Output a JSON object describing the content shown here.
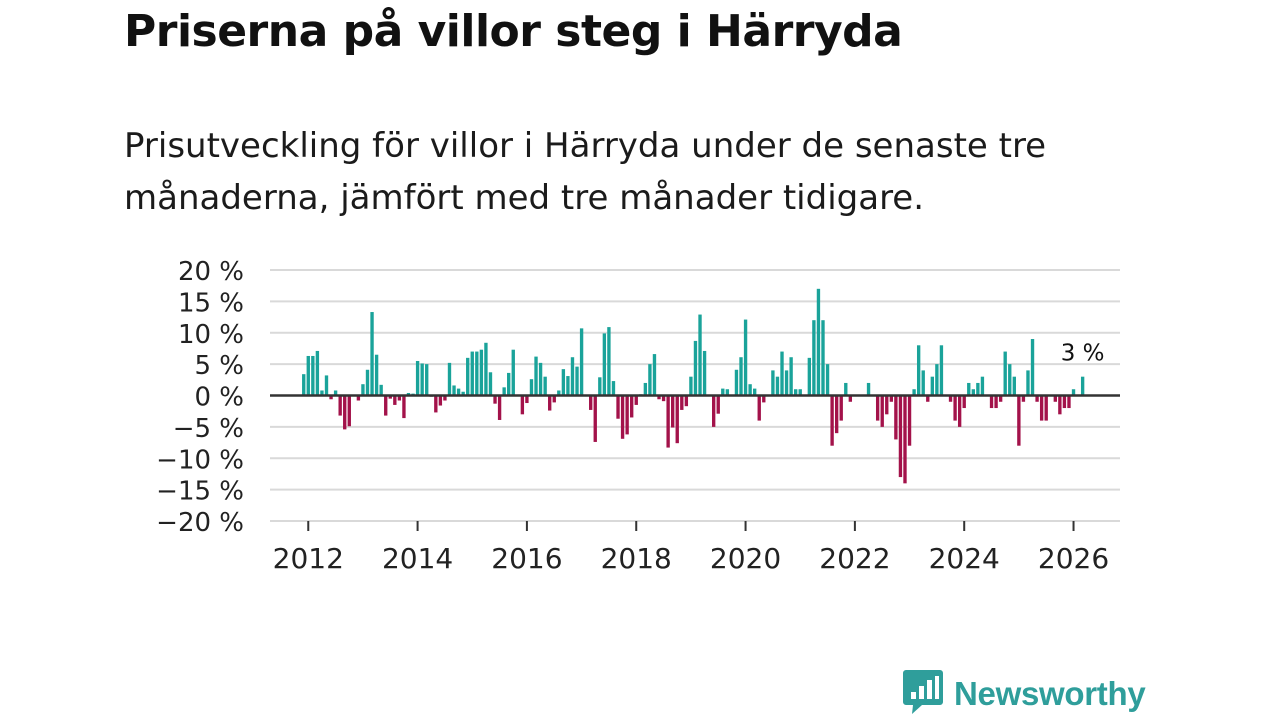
{
  "title": "Priserna på villor steg i Härryda",
  "subtitle": "Prisutveckling för villor i Härryda under de senaste tre månaderna, jämfört med tre månader tidigare.",
  "colors": {
    "positive": "#1aa39a",
    "negative": "#a3124a",
    "grid": "#d9d9d9",
    "zero_line": "#333333",
    "text": "#222222",
    "brand": "#2f9e9b"
  },
  "chart_data": {
    "type": "bar",
    "title": "Priserna på villor steg i Härryda",
    "xlabel": "",
    "ylabel": "",
    "ylim": [
      -20,
      20
    ],
    "yticks": [
      20,
      15,
      10,
      5,
      0,
      -5,
      -10,
      -15,
      -20
    ],
    "ytick_labels": [
      "20 %",
      "15 %",
      "10 %",
      "5 %",
      "0 %",
      "−5 %",
      "−10 %",
      "−15 %",
      "−20 %"
    ],
    "xticks": [
      2012,
      2014,
      2016,
      2018,
      2020,
      2022,
      2024,
      2026
    ],
    "xtick_labels": [
      "2012",
      "2014",
      "2016",
      "2018",
      "2020",
      "2022",
      "2024",
      "2026"
    ],
    "x_start": 2011.917,
    "x_step": 0.08333,
    "last_label": "3 %",
    "values": [
      3.4,
      6.3,
      6.3,
      7.1,
      0.8,
      3.2,
      -0.6,
      0.8,
      -3.2,
      -5.4,
      -4.9,
      0,
      -0.8,
      1.8,
      4.1,
      13.3,
      6.5,
      1.7,
      -3.2,
      -0.5,
      -1.5,
      -0.8,
      -3.6,
      0.4,
      0.3,
      5.5,
      5.1,
      5,
      -0.2,
      -2.7,
      -1.6,
      -0.8,
      5.2,
      1.6,
      1.1,
      0.6,
      6,
      7,
      7,
      7.3,
      8.4,
      3.7,
      -1.3,
      -3.9,
      1.3,
      3.6,
      7.3,
      0,
      -3,
      -1.2,
      2.6,
      6.2,
      5.2,
      3,
      -2.4,
      -1.1,
      0.8,
      4.2,
      3.1,
      6.1,
      4.6,
      10.7,
      0,
      -2.3,
      -7.4,
      2.9,
      9.9,
      10.9,
      2.3,
      -3.7,
      -6.9,
      -6.2,
      -3.5,
      -1.5,
      0.2,
      2,
      5,
      6.6,
      -0.6,
      -0.9,
      -8.3,
      -5.1,
      -7.6,
      -2.3,
      -1.7,
      3,
      8.7,
      12.9,
      7.1,
      0,
      -5,
      -2.9,
      1.1,
      1,
      0,
      4.1,
      6.1,
      12.1,
      1.8,
      1.1,
      -4,
      -1.1,
      0,
      4,
      3,
      7,
      4,
      6.1,
      1,
      1,
      0,
      6,
      12,
      17,
      12,
      5,
      -8,
      -6,
      -4,
      2,
      -1,
      0,
      0,
      0,
      2,
      0,
      -4,
      -5,
      -3,
      -1,
      -7,
      -13,
      -14,
      -8,
      1,
      8,
      4,
      -1,
      3,
      5,
      8,
      0,
      -1,
      -4,
      -5,
      -2,
      2,
      1,
      2,
      3,
      0,
      -2,
      -2,
      -1,
      7,
      5,
      3,
      -8,
      -1,
      4,
      9,
      -1,
      -4,
      -4,
      0,
      -1,
      -3,
      -2,
      -2,
      1,
      0,
      3
    ]
  },
  "logo": {
    "text": "Newsworthy",
    "icon": "newsworthy-bar-chart-icon"
  }
}
